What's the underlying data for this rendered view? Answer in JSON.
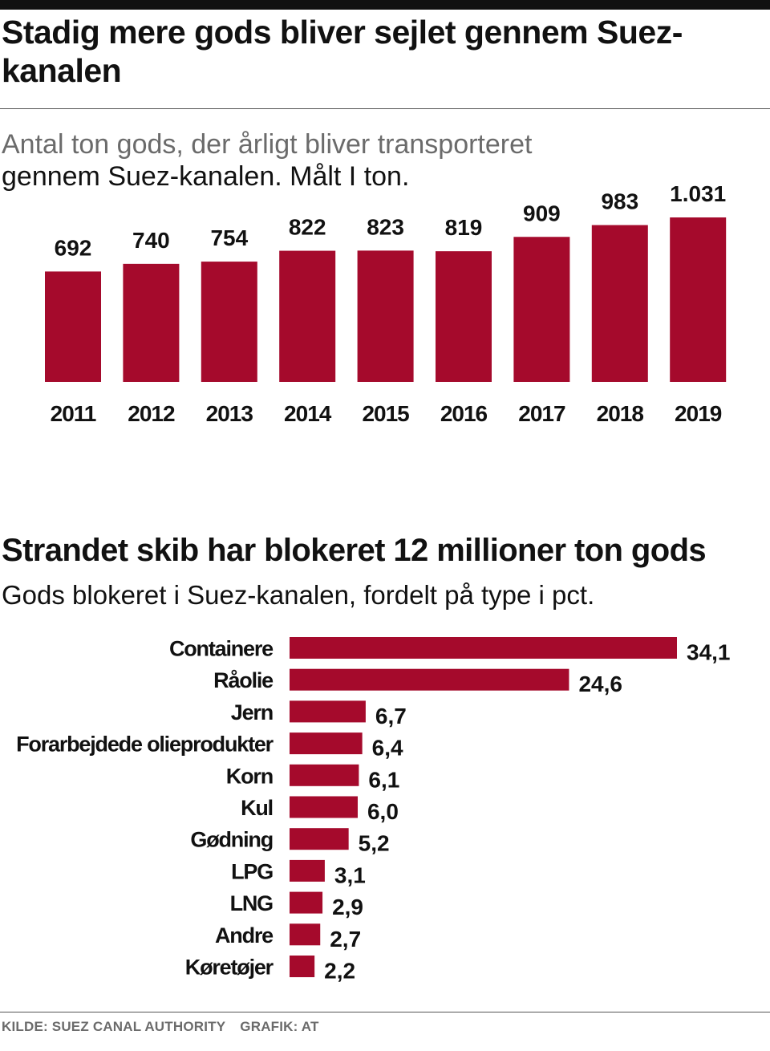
{
  "colors": {
    "bar": "#a50a2c",
    "text": "#111111",
    "muted": "#6b6b6b"
  },
  "header": {
    "title": "Stadig mere gods bliver sejlet gennem Suez-kanalen",
    "subtitle_line1": "Antal ton gods, der årligt bliver transporteret",
    "subtitle_line2": "gennem Suez-kanalen. Målt I ton."
  },
  "second": {
    "title": "Strandet skib har blokeret 12 millioner ton gods",
    "subtitle": "Gods blokeret i Suez-kanalen, fordelt på type i pct."
  },
  "footer": {
    "source": "KILDE: SUEZ CANAL AUTHORITY",
    "credit": "GRAFIK: AT"
  },
  "chart_data": [
    {
      "type": "bar",
      "orientation": "vertical",
      "title": "Stadig mere gods bliver sejlet gennem Suez-kanalen",
      "subtitle": "Antal ton gods, der årligt bliver transporteret gennem Suez-kanalen. Målt I ton.",
      "categories": [
        "2011",
        "2012",
        "2013",
        "2014",
        "2015",
        "2016",
        "2017",
        "2018",
        "2019"
      ],
      "values": [
        692,
        740,
        754,
        822,
        823,
        819,
        909,
        983,
        1031
      ],
      "value_labels": [
        "692",
        "740",
        "754",
        "822",
        "823",
        "819",
        "909",
        "983",
        "1.031"
      ],
      "ylim": [
        0,
        1031
      ],
      "grid": false
    },
    {
      "type": "bar",
      "orientation": "horizontal",
      "title": "Strandet skib har blokeret 12 millioner ton gods",
      "subtitle": "Gods blokeret i Suez-kanalen, fordelt på type i pct.",
      "categories": [
        "Containere",
        "Råolie",
        "Jern",
        "Forarbejdede olieprodukter",
        "Korn",
        "Kul",
        "Gødning",
        "LPG",
        "LNG",
        "Andre",
        "Køretøjer"
      ],
      "values": [
        34.1,
        24.6,
        6.7,
        6.4,
        6.1,
        6.0,
        5.2,
        3.1,
        2.9,
        2.7,
        2.2
      ],
      "value_labels": [
        "34,1",
        "24,6",
        "6,7",
        "6,4",
        "6,1",
        "6,0",
        "5,2",
        "3,1",
        "2,9",
        "2,7",
        "2,2"
      ],
      "xlim": [
        0,
        34.1
      ],
      "grid": false
    }
  ]
}
